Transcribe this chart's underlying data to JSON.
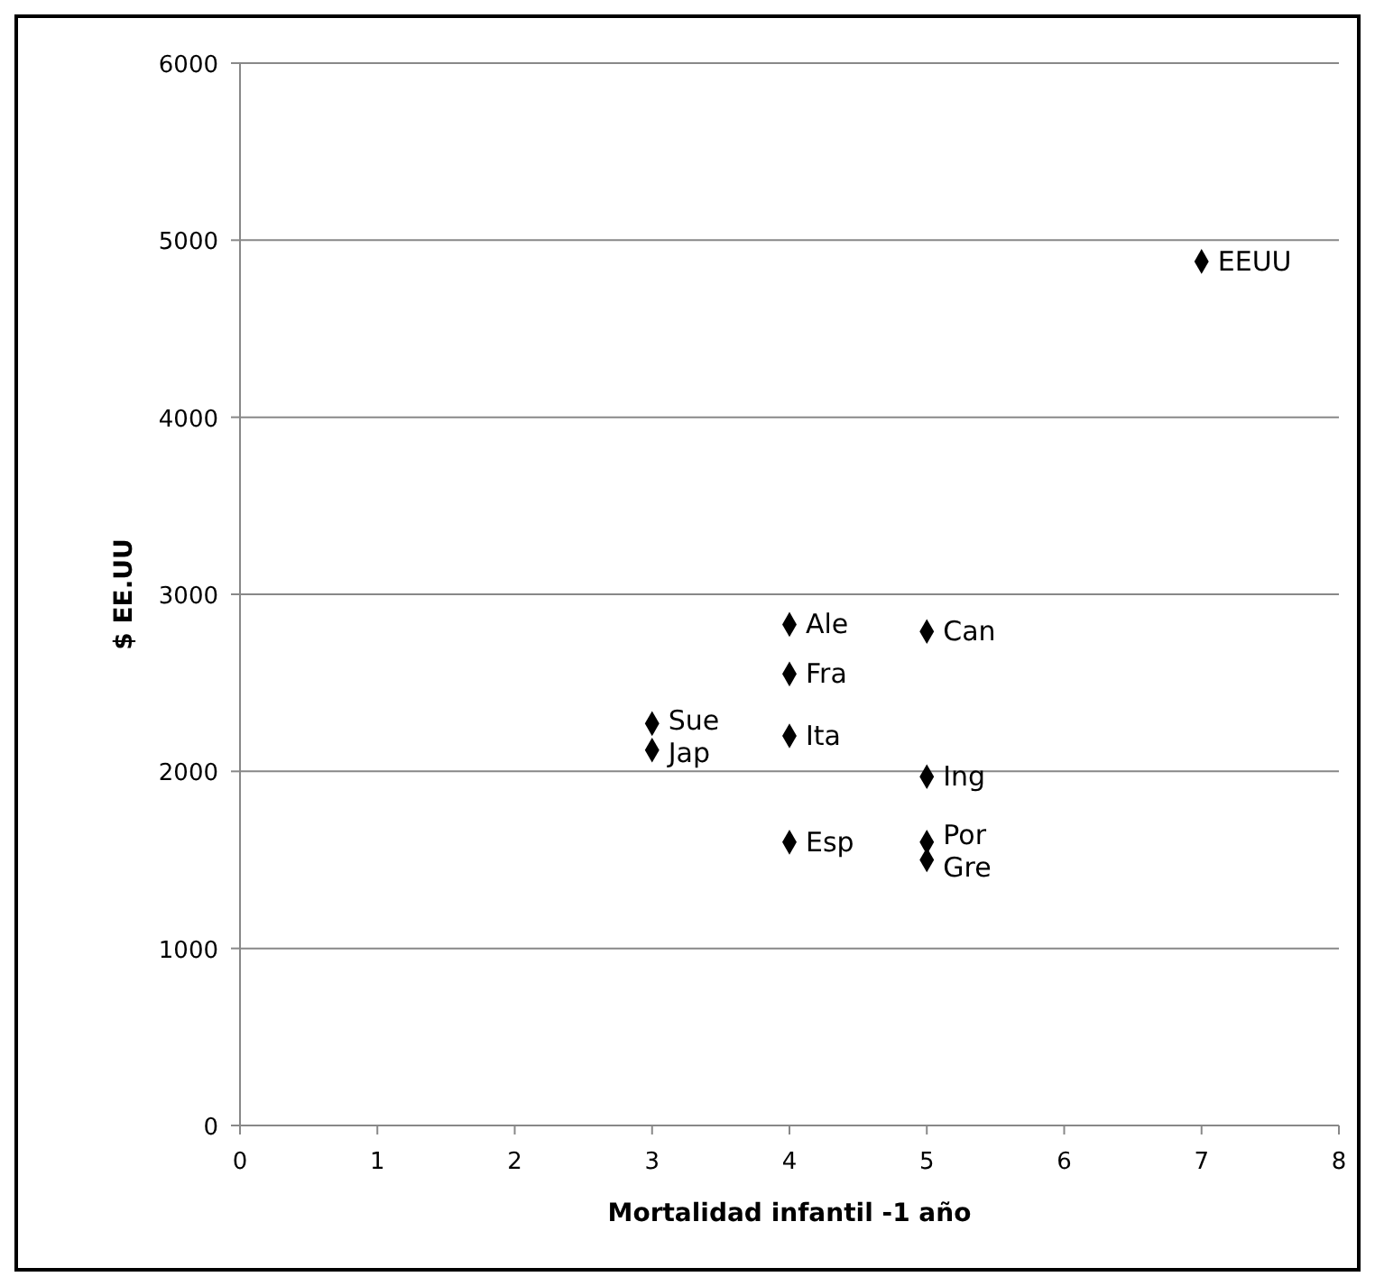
{
  "chart_data": {
    "type": "scatter",
    "xlabel": "Mortalidad infantil -1 año",
    "ylabel": "$ EE.UU",
    "x": [
      7,
      4,
      4,
      4,
      4,
      3,
      3,
      5,
      5,
      5,
      5
    ],
    "values": [
      4880,
      2830,
      2550,
      2200,
      1600,
      2270,
      2120,
      2790,
      1970,
      1600,
      1500
    ],
    "color": "#000000",
    "marker": "diamond",
    "grid": "y",
    "xlim": [
      0,
      8
    ],
    "xticks": [
      0,
      1,
      2,
      3,
      4,
      5,
      6,
      7,
      8
    ],
    "ylim": [
      0,
      6000
    ],
    "yticks": [
      0,
      1000,
      2000,
      3000,
      4000,
      5000,
      6000
    ],
    "annotations": [
      {
        "text": "EEUU",
        "x": 7,
        "y": 4880
      },
      {
        "text": "Ale",
        "x": 4,
        "y": 2830
      },
      {
        "text": "Fra",
        "x": 4,
        "y": 2550
      },
      {
        "text": "Ita",
        "x": 4,
        "y": 2200
      },
      {
        "text": "Esp",
        "x": 4,
        "y": 1600
      },
      {
        "text": "Sue",
        "x": 3,
        "y": 2270
      },
      {
        "text": "Jap",
        "x": 3,
        "y": 2120
      },
      {
        "text": "Can",
        "x": 5,
        "y": 2790
      },
      {
        "text": "Ing",
        "x": 5,
        "y": 1970
      },
      {
        "text": "Por",
        "x": 5,
        "y": 1600
      },
      {
        "text": "Gre",
        "x": 5,
        "y": 1500
      }
    ]
  }
}
